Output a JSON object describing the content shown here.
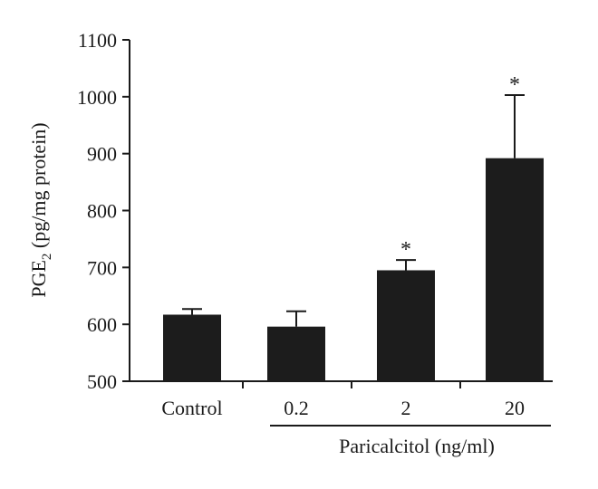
{
  "chart_data": {
    "type": "bar",
    "categories": [
      "Control",
      "0.2",
      "2",
      "20"
    ],
    "values": [
      617,
      596,
      695,
      892
    ],
    "errors": [
      10,
      27,
      18,
      111
    ],
    "significance": [
      "",
      "",
      "*",
      "*"
    ],
    "ylabel_main": "PGE",
    "ylabel_sub": "2",
    "ylabel_rest": " (pg/mg protein)",
    "group_label": "Paricalcitol (ng/ml)",
    "ylim": [
      500,
      1100
    ],
    "yticks": [
      "500",
      "600",
      "700",
      "800",
      "900",
      "1000",
      "1100"
    ],
    "bar_color": "#1c1c1c",
    "grid": false
  }
}
